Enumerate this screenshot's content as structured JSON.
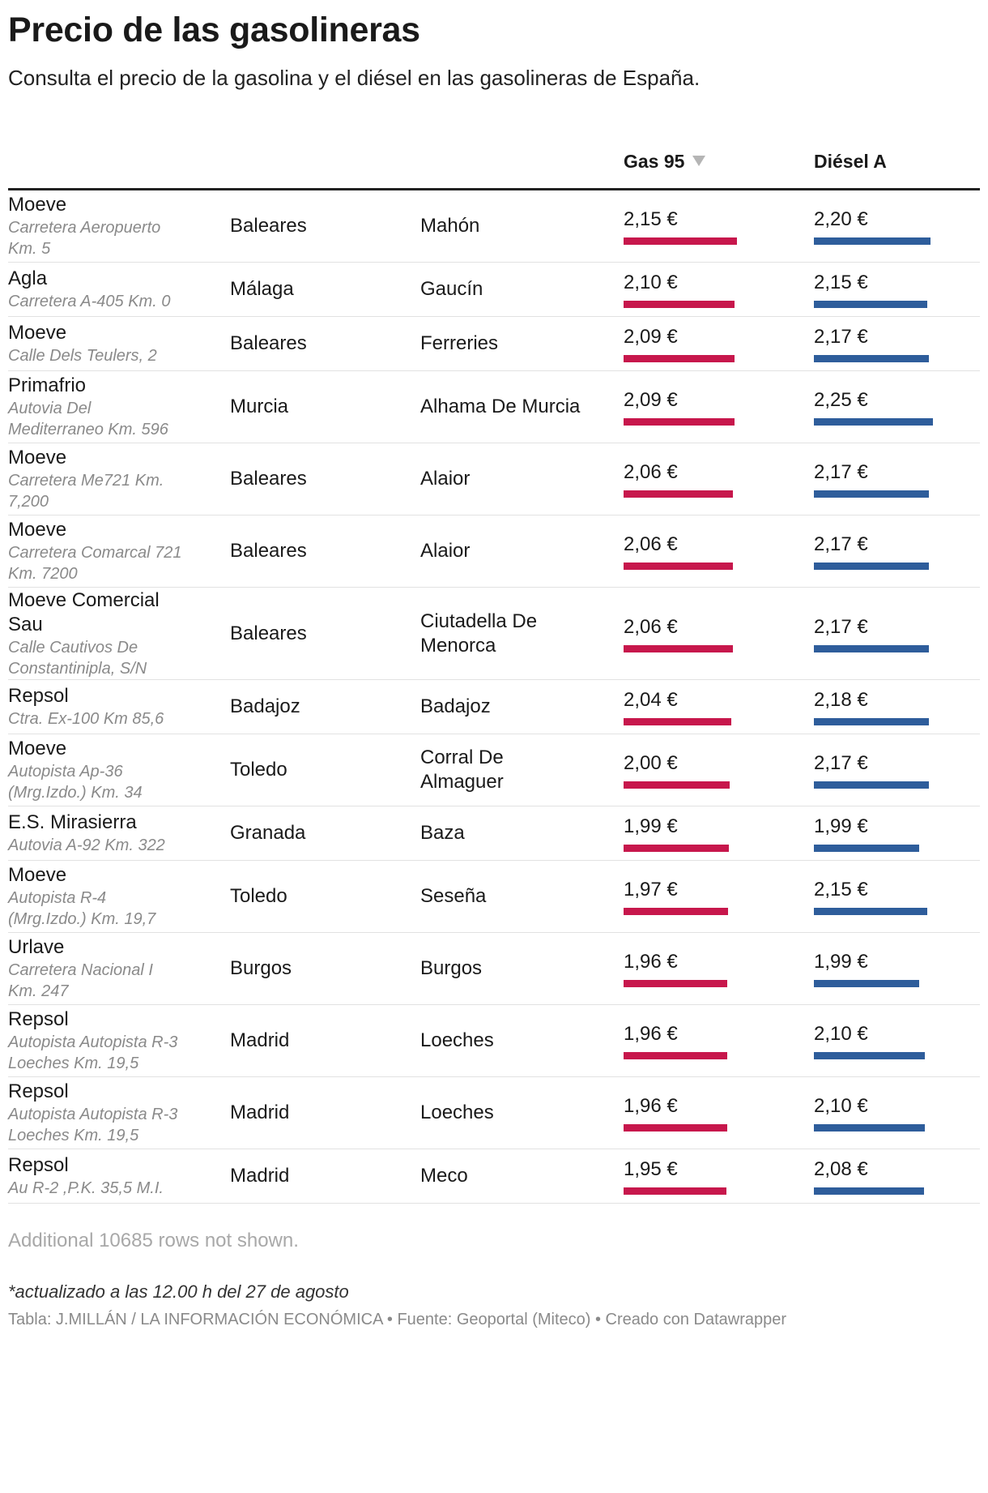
{
  "title": "Precio de las gasolineras",
  "subtitle": "Consulta el precio de la gasolina y el diésel en las gasolineras de España.",
  "columns": {
    "gas": "Gas 95",
    "diesel": "Diésel A"
  },
  "sort_icon": "sort-descending-icon",
  "colors": {
    "gas_bar": "#c7174c",
    "diesel_bar": "#2e5d9b"
  },
  "chart_data": {
    "type": "table",
    "bar_scale_max": 2.25,
    "rows": [
      {
        "station": "Moeve",
        "address": "Carretera Aeropuerto Km. 5",
        "province": "Baleares",
        "town": "Mahón",
        "gas95_label": "2,15 €",
        "diesel_label": "2,20 €",
        "gas95": 2.15,
        "diesel": 2.2
      },
      {
        "station": "Agla",
        "address": "Carretera A-405 Km. 0",
        "province": "Málaga",
        "town": "Gaucín",
        "gas95_label": "2,10 €",
        "diesel_label": "2,15 €",
        "gas95": 2.1,
        "diesel": 2.15
      },
      {
        "station": "Moeve",
        "address": "Calle Dels Teulers, 2",
        "province": "Baleares",
        "town": "Ferreries",
        "gas95_label": "2,09 €",
        "diesel_label": "2,17 €",
        "gas95": 2.09,
        "diesel": 2.17
      },
      {
        "station": "Primafrio",
        "address": "Autovia Del Mediterraneo Km. 596",
        "province": "Murcia",
        "town": "Alhama De Murcia",
        "gas95_label": "2,09 €",
        "diesel_label": "2,25 €",
        "gas95": 2.09,
        "diesel": 2.25
      },
      {
        "station": "Moeve",
        "address": "Carretera Me721 Km. 7,200",
        "province": "Baleares",
        "town": "Alaior",
        "gas95_label": "2,06 €",
        "diesel_label": "2,17 €",
        "gas95": 2.06,
        "diesel": 2.17
      },
      {
        "station": "Moeve",
        "address": "Carretera Comarcal 721 Km. 7200",
        "province": "Baleares",
        "town": "Alaior",
        "gas95_label": "2,06 €",
        "diesel_label": "2,17 €",
        "gas95": 2.06,
        "diesel": 2.17
      },
      {
        "station": "Moeve Comercial Sau",
        "address": "Calle Cautivos De Constantinipla, S/N",
        "province": "Baleares",
        "town": "Ciutadella De Menorca",
        "gas95_label": "2,06 €",
        "diesel_label": "2,17 €",
        "gas95": 2.06,
        "diesel": 2.17
      },
      {
        "station": "Repsol",
        "address": "Ctra. Ex-100 Km 85,6",
        "province": "Badajoz",
        "town": "Badajoz",
        "gas95_label": "2,04 €",
        "diesel_label": "2,18 €",
        "gas95": 2.04,
        "diesel": 2.18
      },
      {
        "station": "Moeve",
        "address": "Autopista Ap-36 (Mrg.Izdo.) Km. 34",
        "province": "Toledo",
        "town": "Corral De Almaguer",
        "gas95_label": "2,00 €",
        "diesel_label": "2,17 €",
        "gas95": 2.0,
        "diesel": 2.17
      },
      {
        "station": "E.S. Mirasierra",
        "address": "Autovia A-92 Km. 322",
        "province": "Granada",
        "town": "Baza",
        "gas95_label": "1,99 €",
        "diesel_label": "1,99 €",
        "gas95": 1.99,
        "diesel": 1.99
      },
      {
        "station": "Moeve",
        "address": "Autopista R-4 (Mrg.Izdo.) Km. 19,7",
        "province": "Toledo",
        "town": "Seseña",
        "gas95_label": "1,97 €",
        "diesel_label": "2,15 €",
        "gas95": 1.97,
        "diesel": 2.15
      },
      {
        "station": "Urlave",
        "address": "Carretera Nacional I Km. 247",
        "province": "Burgos",
        "town": "Burgos",
        "gas95_label": "1,96 €",
        "diesel_label": "1,99 €",
        "gas95": 1.96,
        "diesel": 1.99
      },
      {
        "station": "Repsol",
        "address": "Autopista Autopista R-3 Loeches Km. 19,5",
        "province": "Madrid",
        "town": "Loeches",
        "gas95_label": "1,96 €",
        "diesel_label": "2,10 €",
        "gas95": 1.96,
        "diesel": 2.1
      },
      {
        "station": "Repsol",
        "address": "Autopista Autopista R-3 Loeches Km. 19,5",
        "province": "Madrid",
        "town": "Loeches",
        "gas95_label": "1,96 €",
        "diesel_label": "2,10 €",
        "gas95": 1.96,
        "diesel": 2.1
      },
      {
        "station": "Repsol",
        "address": "Au R-2 ,P.K. 35,5 M.I.",
        "province": "Madrid",
        "town": "Meco",
        "gas95_label": "1,95 €",
        "diesel_label": "2,08 €",
        "gas95": 1.95,
        "diesel": 2.08
      }
    ]
  },
  "not_shown": "Additional 10685 rows not shown.",
  "note": "*actualizado a las 12.00 h del 27 de agosto",
  "source": "Tabla: J.MILLÁN / LA INFORMACIÓN ECONÓMICA • Fuente: Geoportal (Miteco) • Creado con Datawrapper"
}
